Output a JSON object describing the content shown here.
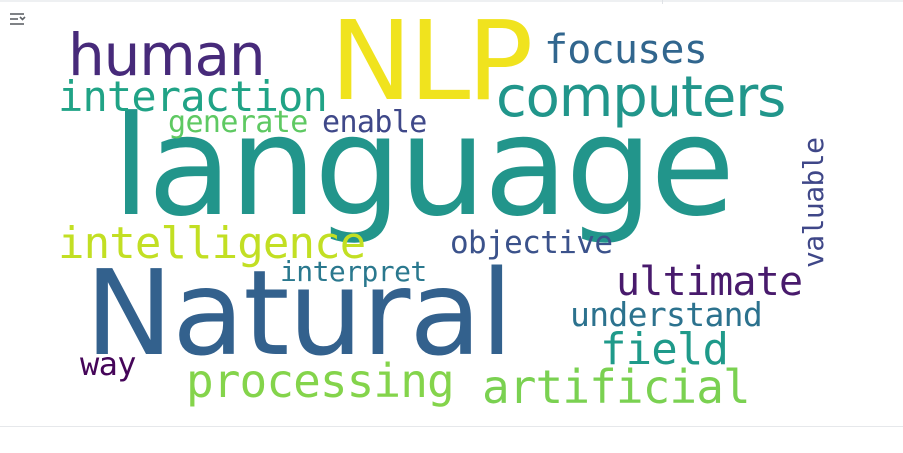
{
  "toolbar": {
    "toggle_icon": "output-collapse-icon"
  },
  "wordcloud": {
    "words": [
      {
        "text": "NLP",
        "color": "#f0e31e"
      },
      {
        "text": "language",
        "color": "#22958b"
      },
      {
        "text": "Natural",
        "color": "#33618d"
      },
      {
        "text": "human",
        "color": "#472a7a"
      },
      {
        "text": "focuses",
        "color": "#31668e"
      },
      {
        "text": "computers",
        "color": "#21968b"
      },
      {
        "text": "interaction",
        "color": "#20a386"
      },
      {
        "text": "generate",
        "color": "#5ec962"
      },
      {
        "text": "enable",
        "color": "#3f4889"
      },
      {
        "text": "valuable",
        "color": "#3f4788"
      },
      {
        "text": "intelligence",
        "color": "#c2df23"
      },
      {
        "text": "objective",
        "color": "#3b528b"
      },
      {
        "text": "interpret",
        "color": "#2a788e"
      },
      {
        "text": "ultimate",
        "color": "#481a6c"
      },
      {
        "text": "understand",
        "color": "#2c728e"
      },
      {
        "text": "field",
        "color": "#1f9a8a"
      },
      {
        "text": "way",
        "color": "#450559"
      },
      {
        "text": "processing",
        "color": "#84d44b"
      },
      {
        "text": "artificial",
        "color": "#7ad151"
      }
    ]
  }
}
